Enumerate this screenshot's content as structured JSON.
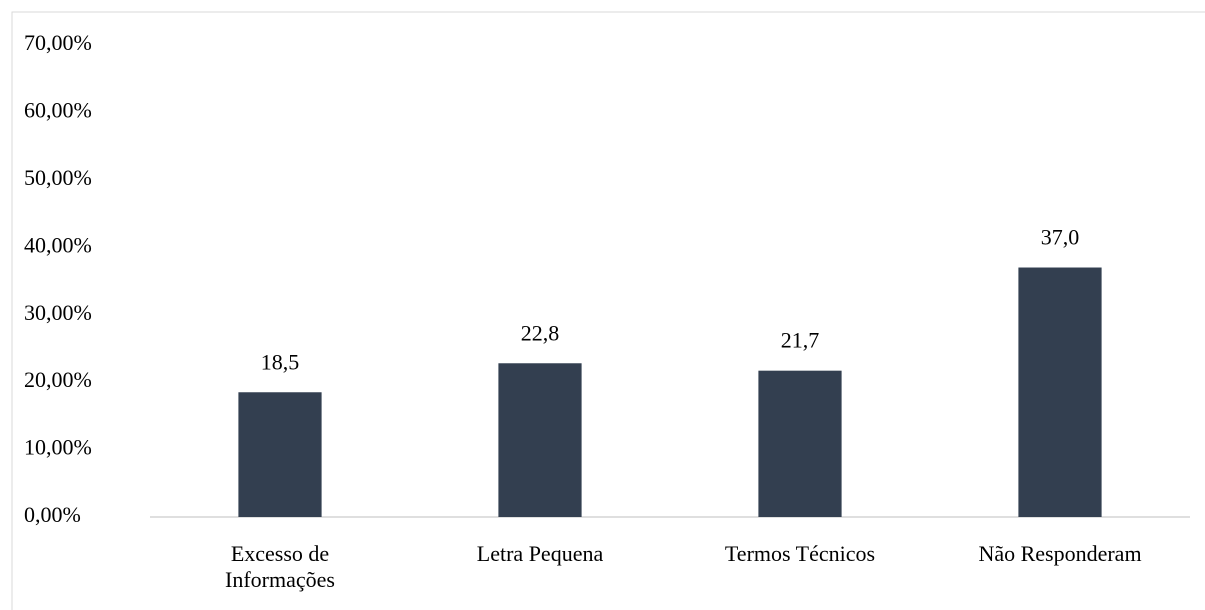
{
  "chart_data": {
    "type": "bar",
    "categories": [
      "Excesso de Informações",
      "Letra Pequena",
      "Termos Técnicos",
      "Não Responderam"
    ],
    "values": [
      18.5,
      22.8,
      21.7,
      37.0
    ],
    "value_labels": [
      "18,5",
      "22,8",
      "21,7",
      "37,0"
    ],
    "color": "#333f50",
    "ylim": [
      0,
      70
    ],
    "yticks": [
      {
        "value": 0,
        "label": "0,00%"
      },
      {
        "value": 10,
        "label": "10,00%"
      },
      {
        "value": 20,
        "label": "20,00%"
      },
      {
        "value": 30,
        "label": "30,00%"
      },
      {
        "value": 40,
        "label": "40,00%"
      },
      {
        "value": 50,
        "label": "50,00%"
      },
      {
        "value": 60,
        "label": "60,00%"
      },
      {
        "value": 70,
        "label": "70,00%"
      }
    ],
    "grid": false
  }
}
